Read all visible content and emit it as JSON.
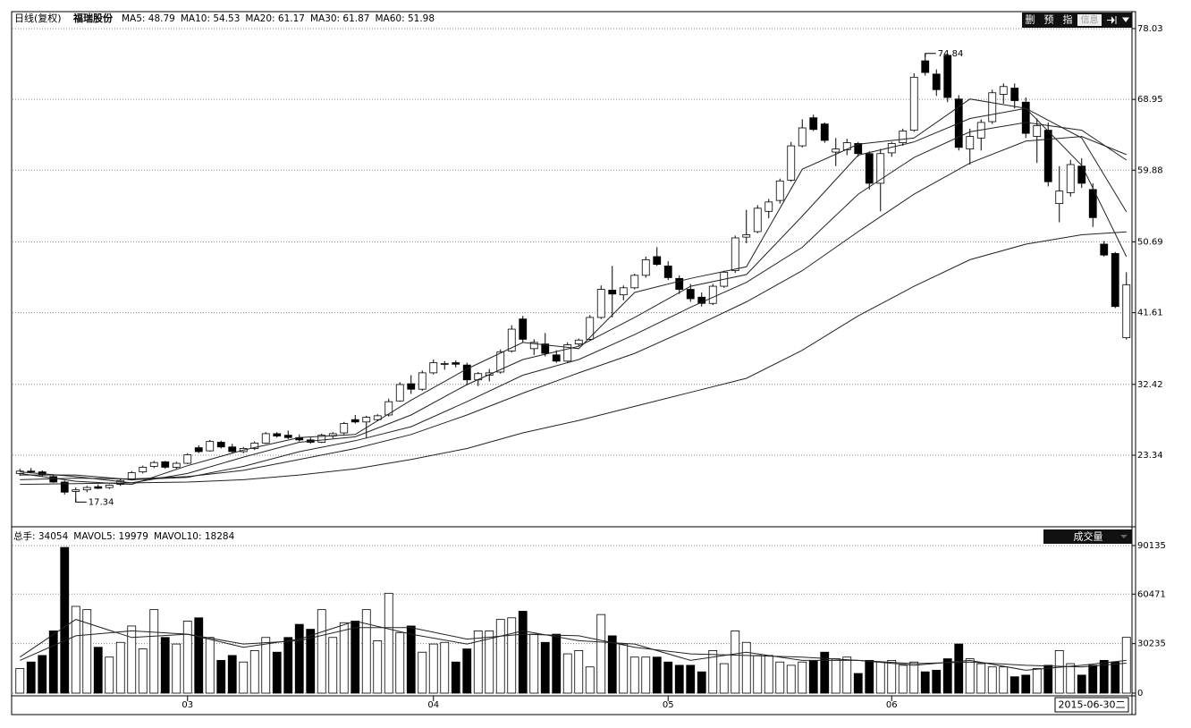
{
  "header": {
    "period": "日线(复权)",
    "stock": "福瑞股份",
    "buttons": [
      "删",
      "预",
      "指",
      "信息"
    ],
    "volume_button": "成交量",
    "cursor_date": "2015-06-30二"
  },
  "chart_data": {
    "type": "candlestick",
    "ohlc": [
      [
        21.0,
        21.6,
        20.7,
        21.3
      ],
      [
        21.3,
        21.7,
        21.0,
        21.2
      ],
      [
        21.2,
        21.4,
        20.6,
        20.8
      ],
      [
        20.6,
        20.8,
        19.8,
        19.9
      ],
      [
        19.9,
        20.1,
        18.3,
        18.6
      ],
      [
        18.7,
        19.2,
        17.34,
        18.9
      ],
      [
        18.9,
        19.4,
        18.6,
        19.2
      ],
      [
        19.3,
        19.6,
        19.0,
        19.1
      ],
      [
        19.2,
        19.6,
        19.0,
        19.5
      ],
      [
        19.6,
        20.3,
        19.4,
        20.1
      ],
      [
        20.2,
        21.3,
        20.1,
        21.1
      ],
      [
        21.2,
        22.0,
        21.0,
        21.8
      ],
      [
        21.9,
        22.6,
        21.7,
        22.4
      ],
      [
        22.5,
        22.6,
        21.6,
        21.8
      ],
      [
        21.8,
        22.5,
        21.6,
        22.3
      ],
      [
        22.3,
        23.6,
        22.2,
        23.4
      ],
      [
        24.3,
        24.6,
        23.6,
        23.8
      ],
      [
        23.9,
        25.3,
        23.8,
        25.1
      ],
      [
        25.0,
        25.2,
        24.2,
        24.4
      ],
      [
        24.4,
        24.8,
        23.6,
        23.8
      ],
      [
        23.8,
        24.4,
        23.6,
        24.2
      ],
      [
        24.2,
        25.1,
        24.0,
        24.9
      ],
      [
        24.9,
        26.3,
        24.8,
        26.1
      ],
      [
        26.1,
        26.3,
        25.6,
        25.8
      ],
      [
        25.9,
        26.5,
        25.4,
        25.6
      ],
      [
        25.6,
        26.0,
        25.1,
        25.3
      ],
      [
        25.3,
        25.6,
        24.8,
        25.0
      ],
      [
        25.0,
        26.1,
        24.9,
        25.9
      ],
      [
        25.8,
        26.3,
        25.5,
        26.1
      ],
      [
        26.2,
        27.6,
        26.0,
        27.4
      ],
      [
        27.9,
        28.5,
        27.4,
        27.6
      ],
      [
        27.6,
        28.4,
        25.5,
        28.2
      ],
      [
        27.9,
        28.6,
        27.7,
        28.4
      ],
      [
        28.5,
        30.6,
        28.3,
        30.2
      ],
      [
        30.3,
        32.7,
        30.2,
        32.4
      ],
      [
        32.5,
        33.6,
        31.2,
        31.8
      ],
      [
        31.8,
        34.2,
        31.6,
        33.9
      ],
      [
        33.9,
        35.6,
        33.7,
        35.2
      ],
      [
        35.0,
        35.4,
        34.3,
        35.1
      ],
      [
        35.2,
        35.5,
        34.6,
        35.0
      ],
      [
        34.9,
        35.2,
        32.3,
        33.0
      ],
      [
        33.0,
        34.0,
        32.2,
        33.8
      ],
      [
        33.6,
        34.4,
        32.8,
        33.9
      ],
      [
        34.0,
        36.9,
        33.8,
        36.6
      ],
      [
        36.7,
        40.0,
        36.5,
        39.5
      ],
      [
        40.8,
        41.2,
        37.8,
        38.2
      ],
      [
        37.0,
        38.2,
        36.2,
        37.8
      ],
      [
        37.6,
        39.0,
        36.0,
        36.4
      ],
      [
        36.2,
        36.8,
        35.2,
        35.4
      ],
      [
        35.4,
        37.8,
        35.2,
        37.5
      ],
      [
        37.6,
        38.3,
        37.3,
        38.1
      ],
      [
        38.2,
        41.3,
        38.0,
        41.0
      ],
      [
        41.0,
        45.1,
        40.8,
        44.6
      ],
      [
        44.5,
        47.6,
        41.0,
        44.0
      ],
      [
        43.9,
        45.1,
        43.2,
        44.8
      ],
      [
        44.8,
        46.6,
        44.6,
        46.4
      ],
      [
        46.4,
        48.8,
        46.1,
        48.4
      ],
      [
        48.8,
        50.0,
        47.6,
        47.8
      ],
      [
        47.6,
        48.2,
        45.8,
        46.1
      ],
      [
        46.0,
        46.4,
        44.0,
        44.6
      ],
      [
        44.6,
        45.3,
        43.0,
        43.4
      ],
      [
        43.6,
        44.2,
        42.4,
        42.8
      ],
      [
        42.8,
        45.3,
        42.6,
        45.0
      ],
      [
        45.0,
        47.0,
        44.8,
        46.8
      ],
      [
        47.0,
        51.5,
        46.7,
        51.2
      ],
      [
        51.3,
        54.8,
        50.5,
        51.6
      ],
      [
        52.0,
        55.4,
        51.8,
        55.0
      ],
      [
        54.6,
        56.2,
        53.7,
        55.8
      ],
      [
        56.0,
        58.8,
        55.6,
        58.5
      ],
      [
        58.6,
        63.5,
        58.4,
        63.0
      ],
      [
        63.0,
        66.4,
        62.8,
        65.3
      ],
      [
        66.6,
        67.0,
        64.9,
        65.1
      ],
      [
        65.8,
        66.0,
        63.4,
        63.7
      ],
      [
        62.2,
        64.0,
        60.4,
        62.6
      ],
      [
        62.5,
        63.9,
        61.8,
        63.4
      ],
      [
        63.3,
        63.5,
        61.6,
        62.0
      ],
      [
        62.0,
        62.3,
        57.4,
        58.2
      ],
      [
        58.2,
        62.6,
        54.6,
        62.0
      ],
      [
        62.1,
        63.5,
        61.6,
        63.3
      ],
      [
        63.4,
        65.2,
        63.0,
        64.9
      ],
      [
        65.0,
        72.3,
        64.8,
        71.8
      ],
      [
        73.9,
        74.84,
        72.0,
        72.4
      ],
      [
        72.2,
        72.8,
        69.4,
        70.2
      ],
      [
        74.6,
        74.7,
        68.6,
        69.2
      ],
      [
        69.0,
        69.5,
        62.4,
        62.8
      ],
      [
        62.6,
        65.2,
        60.6,
        64.2
      ],
      [
        64.0,
        66.4,
        62.4,
        66.0
      ],
      [
        66.1,
        70.2,
        65.8,
        69.8
      ],
      [
        69.6,
        71.0,
        68.4,
        70.6
      ],
      [
        70.4,
        71.0,
        67.8,
        68.8
      ],
      [
        68.6,
        69.2,
        64.0,
        64.6
      ],
      [
        64.2,
        66.5,
        60.8,
        65.6
      ],
      [
        65.0,
        66.0,
        57.8,
        58.4
      ],
      [
        55.6,
        60.4,
        53.2,
        57.2
      ],
      [
        57.0,
        61.2,
        56.5,
        60.6
      ],
      [
        60.4,
        61.4,
        57.6,
        58.2
      ],
      [
        57.4,
        58.2,
        52.6,
        53.8
      ],
      [
        50.4,
        50.8,
        48.8,
        49.0
      ],
      [
        49.2,
        49.4,
        42.2,
        42.4
      ],
      [
        38.4,
        46.8,
        38.16,
        45.2
      ]
    ],
    "volume": [
      15000,
      19000,
      23000,
      38000,
      89000,
      53000,
      51000,
      28000,
      22000,
      31000,
      41000,
      27000,
      51000,
      34000,
      30000,
      44000,
      46000,
      34000,
      20000,
      23000,
      19000,
      26000,
      34000,
      25000,
      34000,
      42000,
      39000,
      51000,
      34000,
      43000,
      44000,
      51000,
      32000,
      61000,
      37000,
      41000,
      25000,
      30000,
      31000,
      19000,
      27000,
      38000,
      38000,
      45000,
      46000,
      50000,
      36000,
      31000,
      36000,
      24000,
      26000,
      16000,
      48000,
      35000,
      30000,
      22000,
      22000,
      22000,
      19000,
      17000,
      17000,
      13000,
      26000,
      18000,
      38000,
      31000,
      23000,
      23000,
      19000,
      17000,
      19000,
      20000,
      25000,
      21000,
      22000,
      12000,
      20000,
      19000,
      20000,
      17000,
      19000,
      13000,
      14000,
      21000,
      30000,
      21000,
      18000,
      16000,
      16000,
      10000,
      11000,
      15000,
      17000,
      26000,
      18000,
      11000,
      17000,
      20000,
      19000,
      34054
    ],
    "ma_x": [
      0,
      5,
      10,
      15,
      20,
      25,
      30,
      35,
      40,
      45,
      50,
      55,
      60,
      65,
      70,
      75,
      80,
      85,
      90,
      95,
      99
    ],
    "ma": [
      {
        "name": "MA5",
        "label": "MA5: 48.79",
        "values": [
          21.0,
          20.0,
          19.6,
          22.0,
          24.0,
          25.6,
          26.0,
          30.4,
          34.4,
          37.8,
          37.0,
          44.2,
          46.0,
          47.5,
          60.0,
          63.2,
          64.0,
          69.0,
          67.8,
          60.5,
          48.79
        ]
      },
      {
        "name": "MA10",
        "label": "MA10: 54.53",
        "values": [
          21.2,
          20.6,
          19.8,
          21.0,
          23.1,
          25.0,
          25.7,
          28.5,
          32.4,
          35.6,
          37.3,
          41.0,
          45.0,
          46.5,
          54.0,
          61.8,
          63.5,
          66.5,
          67.8,
          64.0,
          54.53
        ]
      },
      {
        "name": "MA20",
        "label": "MA20: 61.17",
        "values": [
          20.8,
          20.8,
          20.2,
          20.5,
          21.9,
          23.8,
          25.2,
          27.0,
          30.2,
          33.6,
          35.6,
          38.8,
          42.3,
          45.5,
          50.0,
          56.8,
          61.5,
          64.8,
          66.0,
          65.0,
          61.17
        ]
      },
      {
        "name": "MA30",
        "label": "MA30: 61.87",
        "values": [
          20.2,
          20.4,
          20.3,
          20.6,
          21.4,
          22.8,
          24.2,
          26.0,
          28.5,
          31.3,
          33.9,
          36.4,
          39.6,
          43.0,
          47.0,
          52.0,
          56.8,
          60.8,
          63.6,
          64.2,
          61.87
        ]
      },
      {
        "name": "MA60",
        "label": "MA60: 51.98",
        "values": [
          19.6,
          19.7,
          19.8,
          19.9,
          20.2,
          20.8,
          21.6,
          22.8,
          24.2,
          26.2,
          27.8,
          29.6,
          31.4,
          33.2,
          36.8,
          41.2,
          45.0,
          48.4,
          50.4,
          51.6,
          51.98
        ]
      }
    ],
    "volume_label": "总手: 34054",
    "vol_ma": [
      {
        "name": "MAVOL5",
        "label": "MAVOL5: 19979",
        "values": [
          22000,
          45000,
          34000,
          36000,
          28000,
          33000,
          44000,
          36000,
          30000,
          38000,
          32000,
          30000,
          20000,
          25000,
          20000,
          20000,
          17000,
          20000,
          14000,
          17000,
          19979
        ]
      },
      {
        "name": "MAVOL10",
        "label": "MAVOL10: 18284",
        "values": [
          20000,
          35000,
          38000,
          36000,
          30000,
          32000,
          40000,
          40000,
          33000,
          36000,
          35000,
          28000,
          24000,
          23000,
          22000,
          20000,
          18000,
          19000,
          17000,
          16000,
          18284
        ]
      }
    ],
    "ylim": [
      14.51,
      80.09
    ],
    "yticks": [
      78.03,
      68.95,
      59.88,
      50.69,
      41.61,
      32.42,
      23.34
    ],
    "y2lim": [
      0,
      99968
    ],
    "y2ticks": [
      90135,
      60471,
      30235,
      0
    ],
    "xticks": [
      {
        "value": 15,
        "label": "03"
      },
      {
        "value": 37,
        "label": "04"
      },
      {
        "value": 58,
        "label": "05"
      },
      {
        "value": 78,
        "label": "06"
      }
    ],
    "grid": true,
    "up_color": "#ffffff",
    "down_color": "#000000",
    "line_color": "#222222"
  }
}
